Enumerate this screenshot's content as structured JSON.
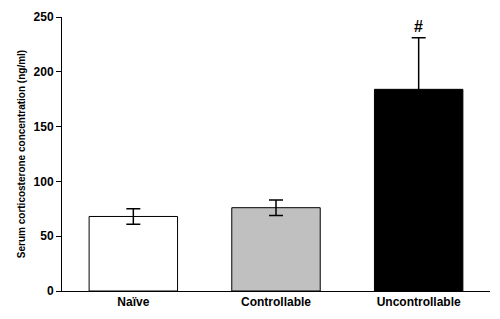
{
  "chart_data": {
    "type": "bar",
    "y_label": "Serum corticosterone concentration (ng/ml)",
    "categories": [
      "Naïve",
      "Controllable",
      "Uncontrollable"
    ],
    "values": [
      68,
      76,
      184
    ],
    "errors": [
      7,
      7,
      47
    ],
    "colors": [
      "#ffffff",
      "#c0c0c0",
      "#000000"
    ],
    "annotations": [
      {
        "text": "#",
        "category": "Uncontrollable"
      }
    ],
    "ylim": [
      0,
      250
    ],
    "yticks": [
      0,
      50,
      100,
      150,
      200,
      250
    ],
    "grid": false
  }
}
